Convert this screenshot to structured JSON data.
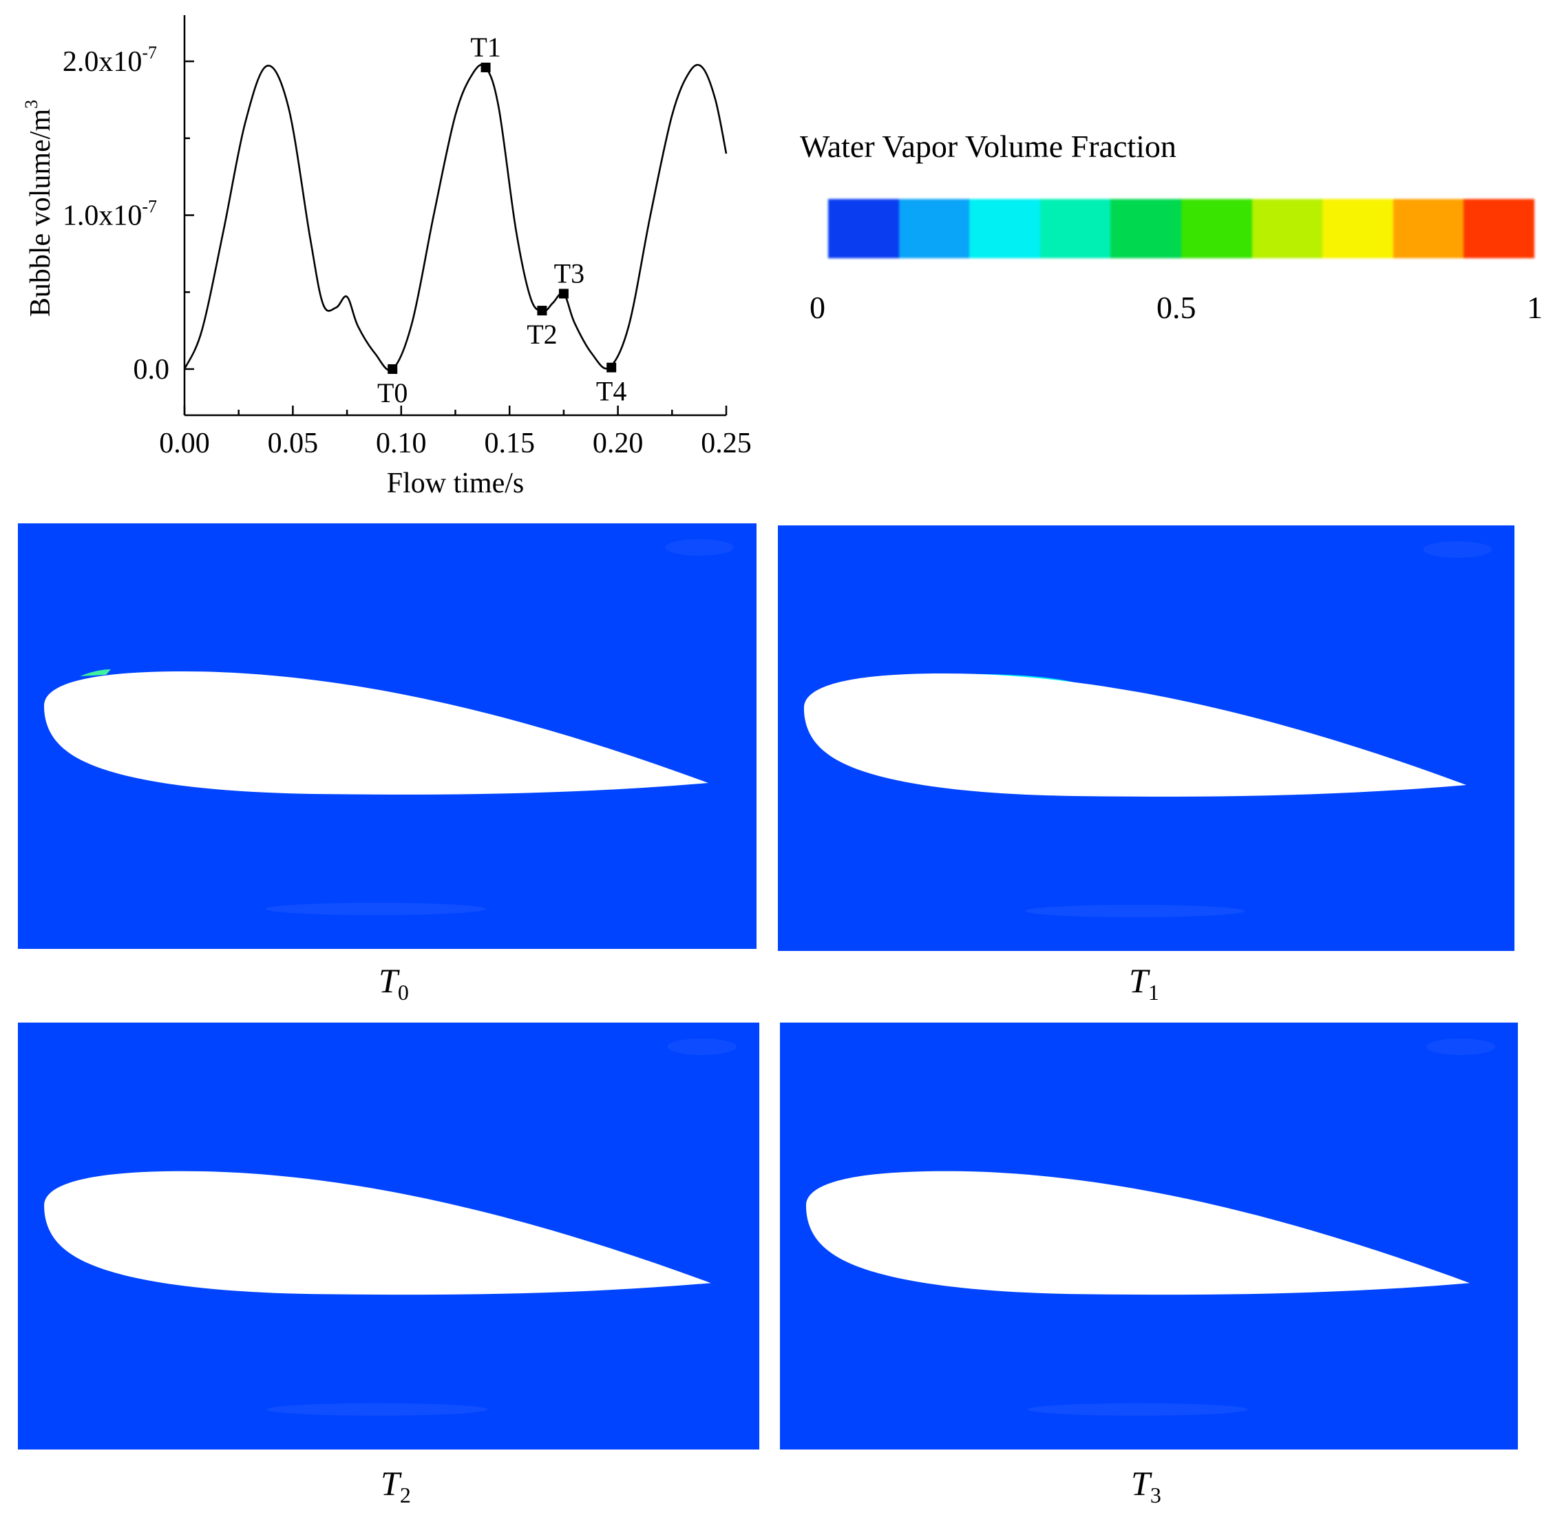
{
  "chart_data": {
    "type": "line",
    "xlabel": "Flow time/s",
    "ylabel": "Bubble volume/m",
    "ylabel_sup": "3",
    "xlim": [
      0.0,
      0.25
    ],
    "ylim": [
      -3e-08,
      2.3e-07
    ],
    "xticks": [
      "0.00",
      "0.05",
      "0.10",
      "0.15",
      "0.20",
      "0.25"
    ],
    "ytick_labels": [
      {
        "value": 0.0,
        "base": "0.0",
        "exp": ""
      },
      {
        "value": 1e-07,
        "base": "1.0x10",
        "exp": "-7"
      },
      {
        "value": 2e-07,
        "base": "2.0x10",
        "exp": "-7"
      }
    ],
    "series": [
      {
        "x": [
          0.0,
          0.008,
          0.018,
          0.028,
          0.038,
          0.048,
          0.058,
          0.064,
          0.07,
          0.075,
          0.08,
          0.088,
          0.096,
          0.105,
          0.115,
          0.125,
          0.133,
          0.139,
          0.145,
          0.153,
          0.16,
          0.166,
          0.17,
          0.175,
          0.18,
          0.188,
          0.196,
          0.205,
          0.215,
          0.225,
          0.233,
          0.239,
          0.245,
          0.25
        ],
        "y": [
          0.0,
          2.5e-08,
          9e-08,
          1.6e-07,
          1.97e-07,
          1.7e-07,
          8.5e-08,
          4.2e-08,
          4e-08,
          4.7e-08,
          2.8e-08,
          1e-08,
          0.0,
          3e-08,
          1e-07,
          1.65e-07,
          1.92e-07,
          1.96e-07,
          1.7e-07,
          9e-08,
          4.5e-08,
          3.8e-08,
          4.3e-08,
          4.9e-08,
          3e-08,
          1e-08,
          1e-09,
          2.8e-08,
          1e-07,
          1.65e-07,
          1.93e-07,
          1.96e-07,
          1.75e-07,
          1.4e-07
        ]
      }
    ],
    "annotations": [
      {
        "label": "T0",
        "x": 0.096,
        "y": 0.0,
        "pos": "below"
      },
      {
        "label": "T1",
        "x": 0.139,
        "y": 1.96e-07,
        "pos": "above"
      },
      {
        "label": "T2",
        "x": 0.165,
        "y": 3.8e-08,
        "pos": "below"
      },
      {
        "label": "T3",
        "x": 0.175,
        "y": 4.9e-08,
        "pos": "above"
      },
      {
        "label": "T4",
        "x": 0.197,
        "y": 1e-09,
        "pos": "below"
      }
    ]
  },
  "legend": {
    "title": "Water Vapor Volume Fraction",
    "colors": [
      "#0a3cf0",
      "#0aa4f8",
      "#00f0f4",
      "#00f0b4",
      "#00d850",
      "#38e400",
      "#b8f000",
      "#f8f400",
      "#ffa200",
      "#ff3800"
    ],
    "ticks": [
      {
        "label": "0",
        "value": 0
      },
      {
        "label": "0.5",
        "value": 0.5
      },
      {
        "label": "1",
        "value": 1
      }
    ]
  },
  "panels": [
    {
      "name": "T",
      "sub": "0",
      "cavity": 0.0
    },
    {
      "name": "T",
      "sub": "1",
      "cavity": 1.0
    },
    {
      "name": "T",
      "sub": "2",
      "cavity": 0.3
    },
    {
      "name": "T",
      "sub": "3",
      "cavity": 0.3
    }
  ]
}
